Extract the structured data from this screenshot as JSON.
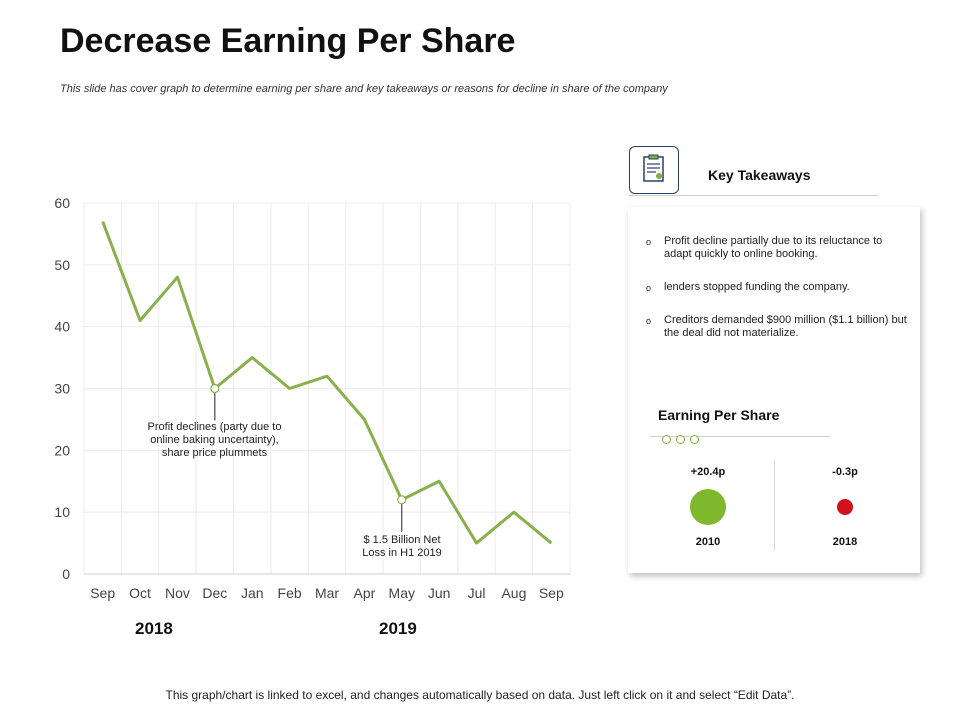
{
  "header": {
    "title": "Decrease Earning Per Share",
    "subtitle": "This slide has cover graph to determine earning per share and key takeaways or reasons for decline in share of the company"
  },
  "chart_data": {
    "type": "line",
    "categories": [
      "Sep",
      "Oct",
      "Nov",
      "Dec",
      "Jan",
      "Feb",
      "Mar",
      "Apr",
      "May",
      "Jun",
      "Jul",
      "Aug",
      "Sep"
    ],
    "values": [
      57,
      41,
      48,
      30,
      35,
      30,
      32,
      25,
      12,
      15,
      5,
      10,
      5
    ],
    "ylim": [
      0,
      60
    ],
    "yticks": [
      0,
      10,
      20,
      30,
      40,
      50,
      60
    ],
    "line_color": "#88b04b",
    "year_labels": [
      "2018",
      "2019"
    ],
    "annotations": [
      {
        "category_index": 3,
        "text_lines": [
          "Profit declines (party due to",
          "online baking uncertainty),",
          "share price plummets"
        ]
      },
      {
        "category_index": 8,
        "text_lines": [
          "$ 1.5 Billion Net",
          "Loss in H1 2019"
        ]
      }
    ]
  },
  "key_takeaways": {
    "title": "Key Takeaways",
    "bullet_marker": "o",
    "items": [
      "Profit decline partially due to its reluctance to adapt quickly to online booking.",
      "lenders stopped funding the company.",
      "Creditors demanded $900 million ($1.1 billion) but the deal did not materialize."
    ]
  },
  "eps": {
    "title": "Earning Per Share",
    "items": [
      {
        "value": "+20.4p",
        "year": "2010",
        "color": "#80b82d"
      },
      {
        "value": "-0.3p",
        "year": "2018",
        "color": "#d0121b"
      }
    ]
  },
  "footer": {
    "text": "This graph/chart is linked to excel, and changes automatically based on data. Just left click on it and select “Edit Data”."
  }
}
